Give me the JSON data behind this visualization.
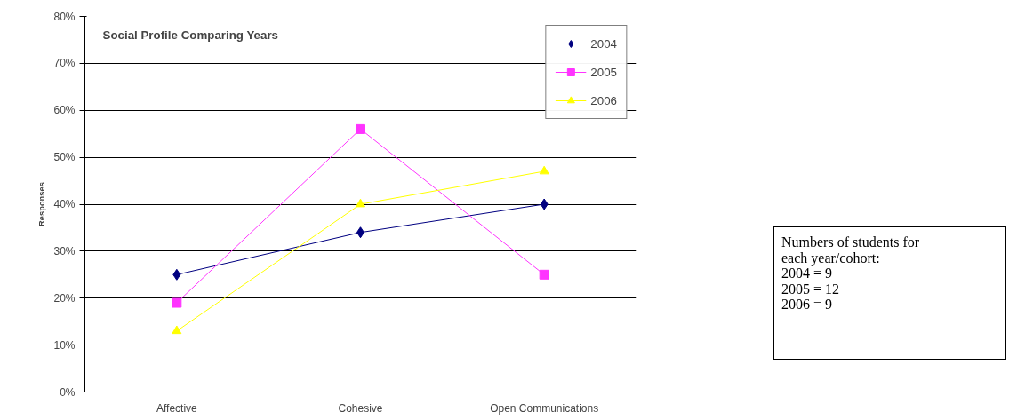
{
  "chart_data": {
    "type": "line",
    "title": "Social Profile Comparing Years",
    "ylabel": "Responses",
    "categories": [
      "Affective",
      "Cohesive",
      "Open Communications"
    ],
    "series": [
      {
        "name": "2004",
        "color": "#000080",
        "marker": "diamond",
        "values": [
          25,
          34,
          40
        ]
      },
      {
        "name": "2005",
        "color": "#ff33ff",
        "marker": "square",
        "values": [
          19,
          56,
          25
        ]
      },
      {
        "name": "2006",
        "color": "#ffff00",
        "marker": "triangle",
        "values": [
          13,
          40,
          47
        ]
      }
    ],
    "ylim": [
      0,
      80
    ],
    "yticks": [
      {
        "value": 0,
        "label": "0%"
      },
      {
        "value": 10,
        "label": "10%"
      },
      {
        "value": 20,
        "label": "20%"
      },
      {
        "value": 30,
        "label": "30%"
      },
      {
        "value": 40,
        "label": "40%"
      },
      {
        "value": 50,
        "label": "50%"
      },
      {
        "value": 60,
        "label": "60%"
      },
      {
        "value": 70,
        "label": "70%"
      },
      {
        "value": 80,
        "label": "80%"
      }
    ],
    "grid": "y",
    "legend": "top right",
    "annotations": [
      "Numbers of students for\neach year/cohort:\n2004 = 9\n2005 = 12\n2006 = 9"
    ]
  }
}
